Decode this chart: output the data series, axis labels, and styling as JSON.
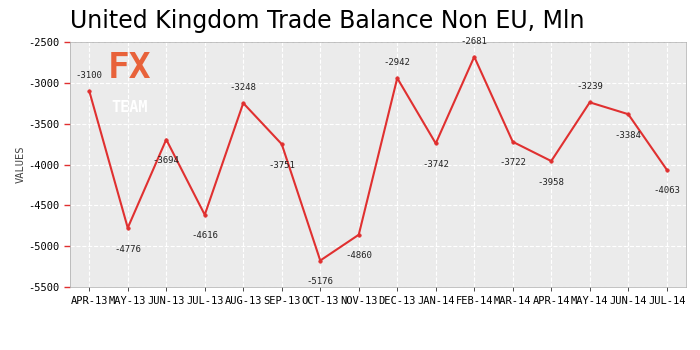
{
  "title": "United Kingdom Trade Balance Non EU, Mln",
  "ylabel": "VALUES",
  "categories": [
    "APR-13",
    "MAY-13",
    "JUN-13",
    "JUL-13",
    "AUG-13",
    "SEP-13",
    "OCT-13",
    "NOV-13",
    "DEC-13",
    "JAN-14",
    "FEB-14",
    "MAR-14",
    "APR-14",
    "MAY-14",
    "JUN-14",
    "JUL-14"
  ],
  "values": [
    -3100,
    -4776,
    -3694,
    -4616,
    -3248,
    -3751,
    -5176,
    -4860,
    -2942,
    -3742,
    -2681,
    -3722,
    -3958,
    -3239,
    -3384,
    -4063
  ],
  "line_color": "#e03030",
  "marker_color": "#e03030",
  "background_color": "#ffffff",
  "plot_bg_color": "#ebebeb",
  "grid_color": "#ffffff",
  "ylim": [
    -5500,
    -2500
  ],
  "yticks": [
    -5500,
    -5000,
    -4500,
    -4000,
    -3500,
    -3000,
    -2500
  ],
  "logo_bg_color": "#737373",
  "logo_fx_color": "#e8623a",
  "logo_team_color": "#ffffff",
  "title_fontsize": 17,
  "axis_fontsize": 7.5
}
